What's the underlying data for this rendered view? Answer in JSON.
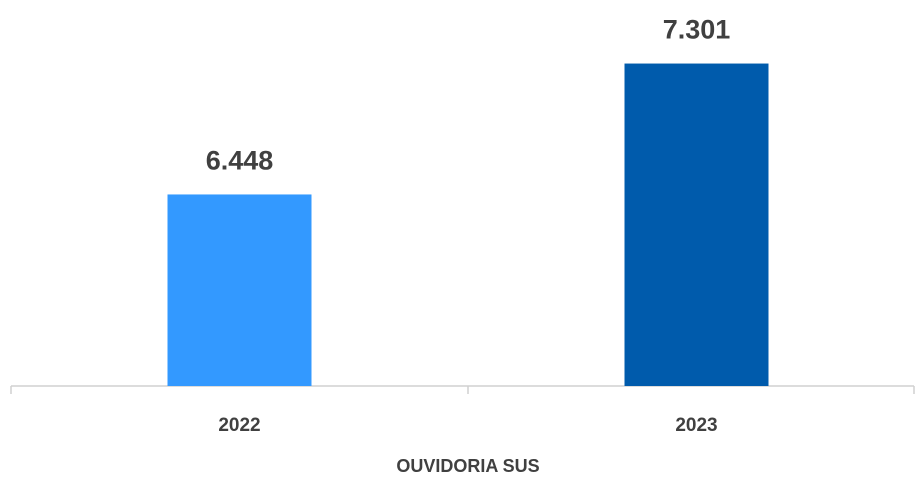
{
  "chart_data": {
    "type": "bar",
    "categories": [
      "2022",
      "2023"
    ],
    "values": [
      6448,
      7301
    ],
    "value_labels": [
      "6.448",
      "7.301"
    ],
    "colors": [
      "#3399ff",
      "#005bac"
    ],
    "xlabel": "OUVIDORIA SUS",
    "ylim": [
      5200,
      7500
    ]
  }
}
